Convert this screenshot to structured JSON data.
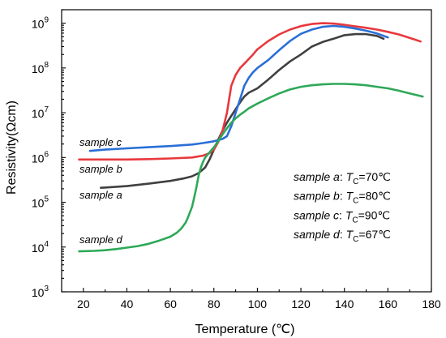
{
  "chart_data": {
    "type": "line",
    "xlabel": "Temperature (℃)",
    "ylabel": "Resistivity(Ωcm)",
    "xlim": [
      10,
      180
    ],
    "ylim": [
      1000,
      2000000000
    ],
    "yscale": "log",
    "x_ticks": [
      "20",
      "40",
      "60",
      "80",
      "100",
      "120",
      "140",
      "160",
      "180"
    ],
    "x_tick_values": [
      20,
      40,
      60,
      80,
      100,
      120,
      140,
      160,
      180
    ],
    "y_ticks": [
      {
        "value": 1000,
        "base": "10",
        "exp": "3"
      },
      {
        "value": 10000,
        "base": "10",
        "exp": "4"
      },
      {
        "value": 100000,
        "base": "10",
        "exp": "5"
      },
      {
        "value": 1000000,
        "base": "10",
        "exp": "6"
      },
      {
        "value": 10000000,
        "base": "10",
        "exp": "7"
      },
      {
        "value": 100000000,
        "base": "10",
        "exp": "8"
      },
      {
        "value": 1000000000,
        "base": "10",
        "exp": "9"
      }
    ],
    "series": [
      {
        "name": "sample a",
        "label": "sample a",
        "color": "#404040",
        "x": [
          28,
          40,
          50,
          60,
          66,
          70,
          73,
          76,
          78,
          80,
          82,
          84,
          86,
          88,
          90,
          92,
          94,
          96,
          100,
          105,
          110,
          115,
          120,
          125,
          130,
          135,
          140,
          145,
          150,
          155,
          158
        ],
        "y": [
          210000,
          230000,
          260000,
          300000,
          340000,
          380000,
          450000,
          600000,
          900000,
          1500000,
          2500000,
          4000000,
          6000000,
          8500000,
          12000000,
          17000000,
          23000000,
          28000000,
          35000000,
          55000000,
          90000000,
          140000000,
          200000000,
          300000000,
          380000000,
          450000000,
          540000000,
          570000000,
          570000000,
          520000000,
          450000000
        ]
      },
      {
        "name": "sample b",
        "label": "sample b",
        "color": "#e8383d",
        "x": [
          18,
          30,
          40,
          50,
          60,
          70,
          75,
          78,
          80,
          82,
          84,
          86,
          88,
          90,
          92,
          95,
          98,
          100,
          105,
          110,
          115,
          120,
          125,
          130,
          135,
          140,
          145,
          150,
          155,
          160,
          165,
          170,
          175
        ],
        "y": [
          900000,
          900000,
          900000,
          920000,
          950000,
          1000000,
          1100000,
          1250000,
          1500000,
          2200000,
          4000000,
          10000000,
          40000000,
          70000000,
          100000000,
          140000000,
          200000000,
          260000000,
          400000000,
          560000000,
          720000000,
          860000000,
          960000000,
          1000000000,
          980000000,
          920000000,
          850000000,
          790000000,
          720000000,
          640000000,
          560000000,
          470000000,
          390000000
        ]
      },
      {
        "name": "sample c",
        "label": "sample c",
        "color": "#2a6fd6",
        "x": [
          23,
          30,
          40,
          50,
          60,
          70,
          75,
          80,
          84,
          86,
          88,
          90,
          92,
          94,
          96,
          98,
          100,
          105,
          110,
          115,
          120,
          125,
          130,
          135,
          140,
          145,
          150,
          155,
          160
        ],
        "y": [
          1400000,
          1500000,
          1600000,
          1700000,
          1800000,
          1950000,
          2100000,
          2300000,
          2600000,
          3000000,
          5000000,
          10000000,
          20000000,
          40000000,
          60000000,
          80000000,
          100000000,
          150000000,
          250000000,
          400000000,
          580000000,
          720000000,
          830000000,
          870000000,
          830000000,
          760000000,
          680000000,
          590000000,
          480000000
        ]
      },
      {
        "name": "sample d",
        "label": "sample d",
        "color": "#2ea858",
        "x": [
          18,
          25,
          30,
          35,
          40,
          45,
          50,
          55,
          60,
          63,
          65,
          66,
          67,
          68,
          69,
          70,
          71,
          72,
          73,
          74,
          75,
          76,
          78,
          80,
          82,
          84,
          86,
          88,
          90,
          92,
          94,
          96,
          100,
          105,
          110,
          115,
          120,
          125,
          130,
          135,
          140,
          145,
          150,
          155,
          160,
          165,
          170,
          176
        ],
        "y": [
          8000,
          8200,
          8500,
          9000,
          9700,
          10500,
          11800,
          14000,
          17000,
          21000,
          26000,
          30000,
          35000,
          45000,
          60000,
          80000,
          130000,
          220000,
          400000,
          600000,
          800000,
          1000000,
          1300000,
          1700000,
          2300000,
          3300000,
          4500000,
          6000000,
          7500000,
          9000000,
          10500000,
          12500000,
          16000000,
          21000000,
          27000000,
          33000000,
          38000000,
          41000000,
          43000000,
          44000000,
          44000000,
          43000000,
          41000000,
          38000000,
          35000000,
          31000000,
          27000000,
          23000000
        ]
      }
    ],
    "legend": [
      {
        "sample": "sample a",
        "sep": ": ",
        "tc_symbol": "T",
        "tc_sub": "C",
        "tc_value": "=70℃"
      },
      {
        "sample": "sample b",
        "sep": ": ",
        "tc_symbol": "T",
        "tc_sub": "C",
        "tc_value": "=80℃"
      },
      {
        "sample": "sample c",
        "sep": ": ",
        "tc_symbol": "T",
        "tc_sub": "C",
        "tc_value": "=90℃"
      },
      {
        "sample": "sample d",
        "sep": ": ",
        "tc_symbol": "T",
        "tc_sub": "C",
        "tc_value": "=67℃"
      }
    ]
  }
}
